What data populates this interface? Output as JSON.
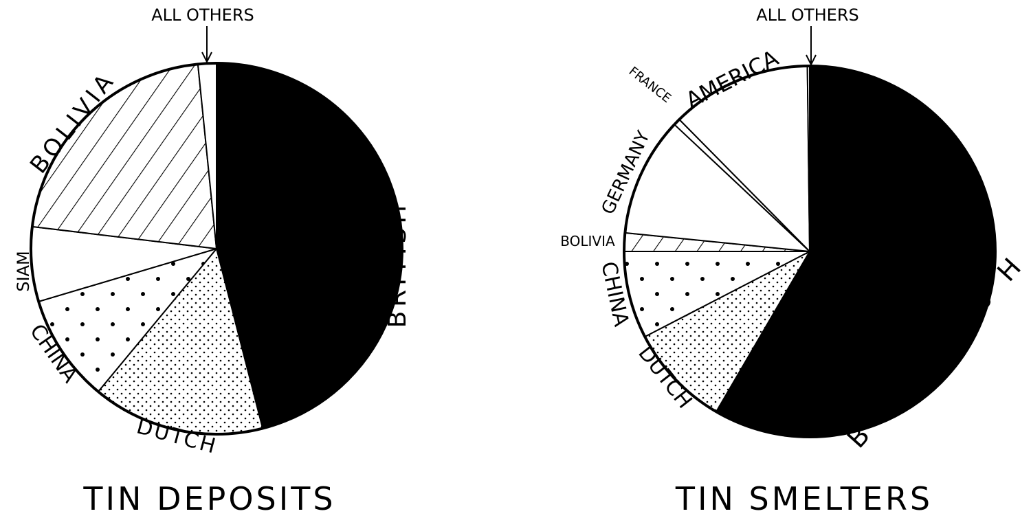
{
  "chart_data": [
    {
      "type": "pie",
      "title": "TIN DEPOSITS",
      "start": "top",
      "direction": "clockwise",
      "slices": [
        {
          "label": "BRITISH",
          "value": 46,
          "fill": "solid-black"
        },
        {
          "label": "DUTCH",
          "value": 15,
          "fill": "fine-dots"
        },
        {
          "label": "CHINA",
          "value": 9.4,
          "fill": "sparse-dots"
        },
        {
          "label": "SIAM",
          "value": 6.5,
          "fill": "white"
        },
        {
          "label": "BOLIVIA",
          "value": 21.5,
          "fill": "diagonal-hatch"
        },
        {
          "label": "ALL OTHERS",
          "value": 1.6,
          "fill": "white"
        }
      ]
    },
    {
      "type": "pie",
      "title": "TIN SMELTERS",
      "start": "top",
      "direction": "clockwise",
      "slices": [
        {
          "label": "BRITISH",
          "value": 58.4,
          "fill": "solid-black"
        },
        {
          "label": "DUTCH",
          "value": 9,
          "fill": "fine-dots"
        },
        {
          "label": "CHINA",
          "value": 7.6,
          "fill": "sparse-dots"
        },
        {
          "label": "BOLIVIA",
          "value": 1.6,
          "fill": "diagonal-hatch"
        },
        {
          "label": "GERMANY",
          "value": 10.4,
          "fill": "white"
        },
        {
          "label": "FRANCE",
          "value": 0.6,
          "fill": "white"
        },
        {
          "label": "AMERICA",
          "value": 12.2,
          "fill": "white"
        },
        {
          "label": "ALL OTHERS",
          "value": 0.2,
          "fill": "white"
        }
      ]
    }
  ]
}
